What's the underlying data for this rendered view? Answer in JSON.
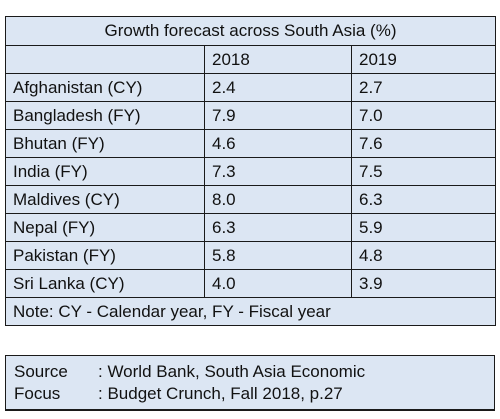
{
  "chart_data": {
    "type": "table",
    "title": "Growth forecast across South Asia (%)",
    "columns": [
      "2018",
      "2019"
    ],
    "rows": [
      {
        "country": "Afghanistan (CY)",
        "v2018": "2.4",
        "v2019": "2.7"
      },
      {
        "country": "Bangladesh (FY)",
        "v2018": "7.9",
        "v2019": "7.0"
      },
      {
        "country": "Bhutan (FY)",
        "v2018": "4.6",
        "v2019": "7.6"
      },
      {
        "country": "India (FY)",
        "v2018": "7.3",
        "v2019": "7.5"
      },
      {
        "country": "Maldives (CY)",
        "v2018": "8.0",
        "v2019": "6.3"
      },
      {
        "country": "Nepal (FY)",
        "v2018": "6.3",
        "v2019": "5.9"
      },
      {
        "country": "Pakistan (FY)",
        "v2018": "5.8",
        "v2019": "4.8"
      },
      {
        "country": "Sri Lanka (CY)",
        "v2018": "4.0",
        "v2019": "3.9"
      }
    ],
    "note": "Note: CY - Calendar year, FY - Fiscal year"
  },
  "source": {
    "label": "Source",
    "line1": ": World Bank, South Asia Economic",
    "label2": "Focus",
    "line2": ": Budget Crunch, Fall 2018, p.27"
  },
  "colors": {
    "cell_background": "#dce6f3",
    "border": "#1a1a1a"
  }
}
